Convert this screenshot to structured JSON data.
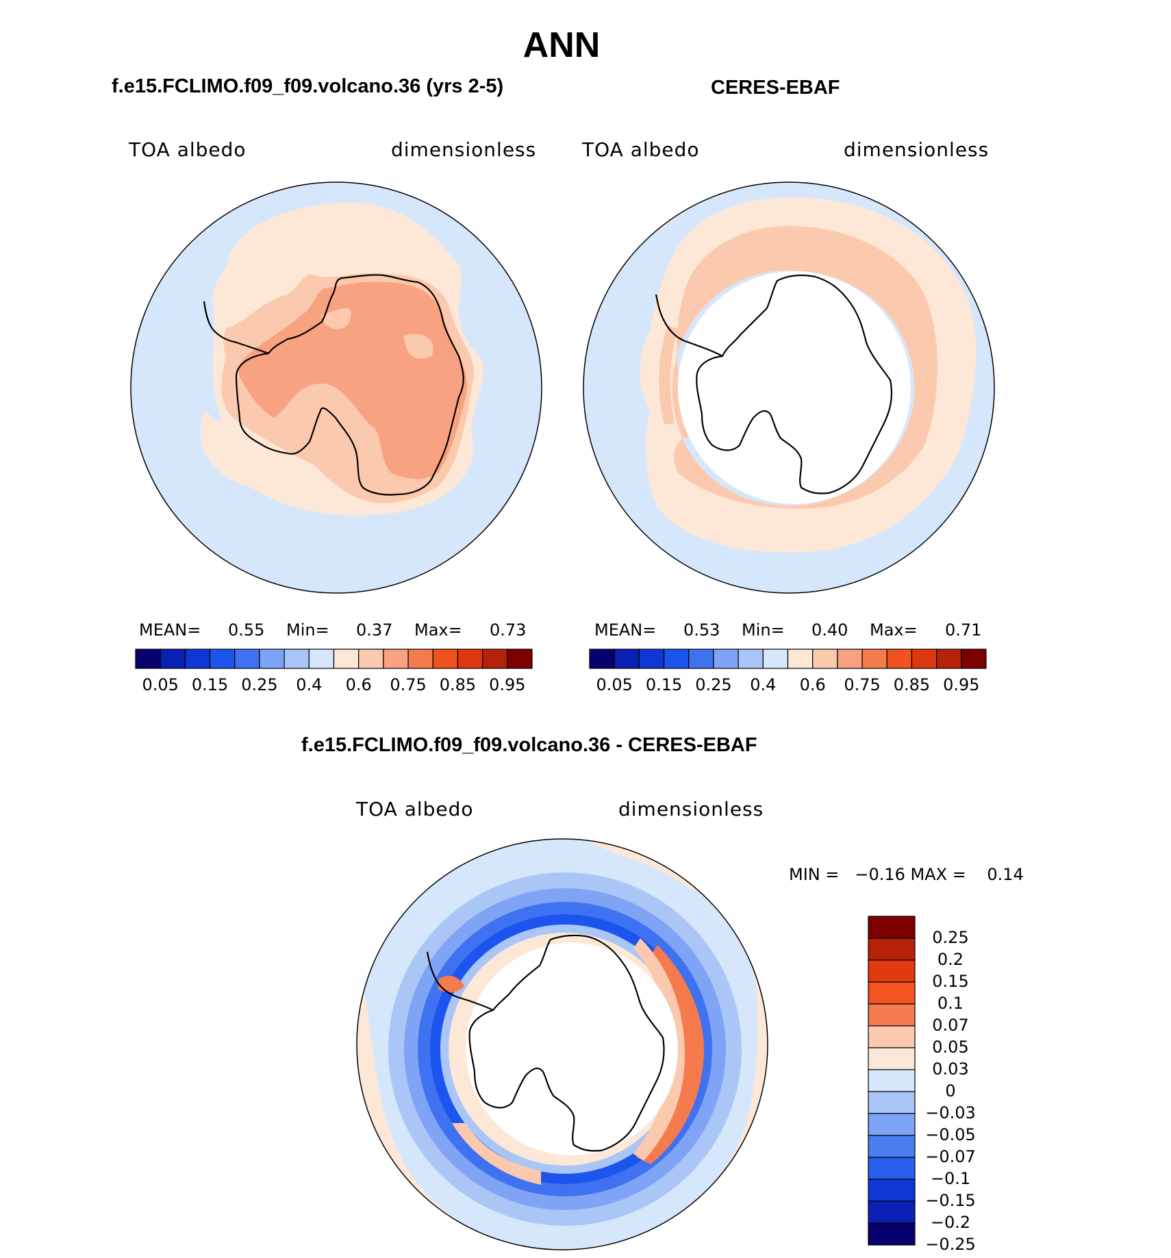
{
  "figure": {
    "season": "ANN",
    "panel_model": {
      "title": "f.e15.FCLIMO.f09_f09.volcano.36 (yrs 2-5)",
      "left_label": "TOA albedo",
      "right_label": "dimensionless",
      "mean_label": "MEAN=",
      "mean_value": "0.55",
      "min_label": "Min=",
      "min_value": "0.37",
      "max_label": "Max=",
      "max_value": "0.73"
    },
    "panel_obs": {
      "title": "CERES-EBAF",
      "left_label": "TOA albedo",
      "right_label": "dimensionless",
      "mean_label": "MEAN=",
      "mean_value": "0.53",
      "min_label": "Min=",
      "min_value": "0.40",
      "max_label": "Max=",
      "max_value": "0.71"
    },
    "panel_diff": {
      "title": "f.e15.FCLIMO.f09_f09.volcano.36 - CERES-EBAF",
      "left_label": "TOA albedo",
      "right_label": "dimensionless",
      "minmax_text": "MIN =   −0.16 MAX =    0.14"
    },
    "abs_colorbar": {
      "colors": [
        "#08006f",
        "#0a1fb3",
        "#0f37d6",
        "#1c55ee",
        "#3f72f0",
        "#7fa4f5",
        "#a9c6f7",
        "#d6e7fb",
        "#fde8d8",
        "#fbcaae",
        "#f8a282",
        "#f57a4e",
        "#f0531f",
        "#dd3712",
        "#b62207",
        "#7d0000"
      ],
      "tick_labels": [
        "0.05",
        "0.15",
        "0.25",
        "0.4",
        "0.6",
        "0.75",
        "0.85",
        "0.95"
      ]
    },
    "diff_colorbar": {
      "colors": [
        "#7d0000",
        "#b62207",
        "#e03a0e",
        "#f4531f",
        "#f57a4e",
        "#fbcaae",
        "#fde8d8",
        "#d6e7fb",
        "#a9c6f7",
        "#7fa4f5",
        "#4c7df0",
        "#2a5cee",
        "#0f37d6",
        "#0a1fb3",
        "#08006f"
      ],
      "tick_labels": [
        "0.25",
        "0.2",
        "0.15",
        "0.1",
        "0.07",
        "0.05",
        "0.03",
        "0",
        "−0.03",
        "−0.05",
        "−0.07",
        "−0.1",
        "−0.15",
        "−0.2",
        "−0.25"
      ]
    },
    "map_colors": {
      "ocean_light_blue": "#d6e7fb",
      "peach": "#fde8d8",
      "light_salmon": "#fbcaae",
      "salmon": "#f8a282",
      "orange": "#f57a4e",
      "mid_blue": "#7fa4f5",
      "blue": "#3f72f0",
      "deep_blue": "#1c55ee"
    }
  }
}
